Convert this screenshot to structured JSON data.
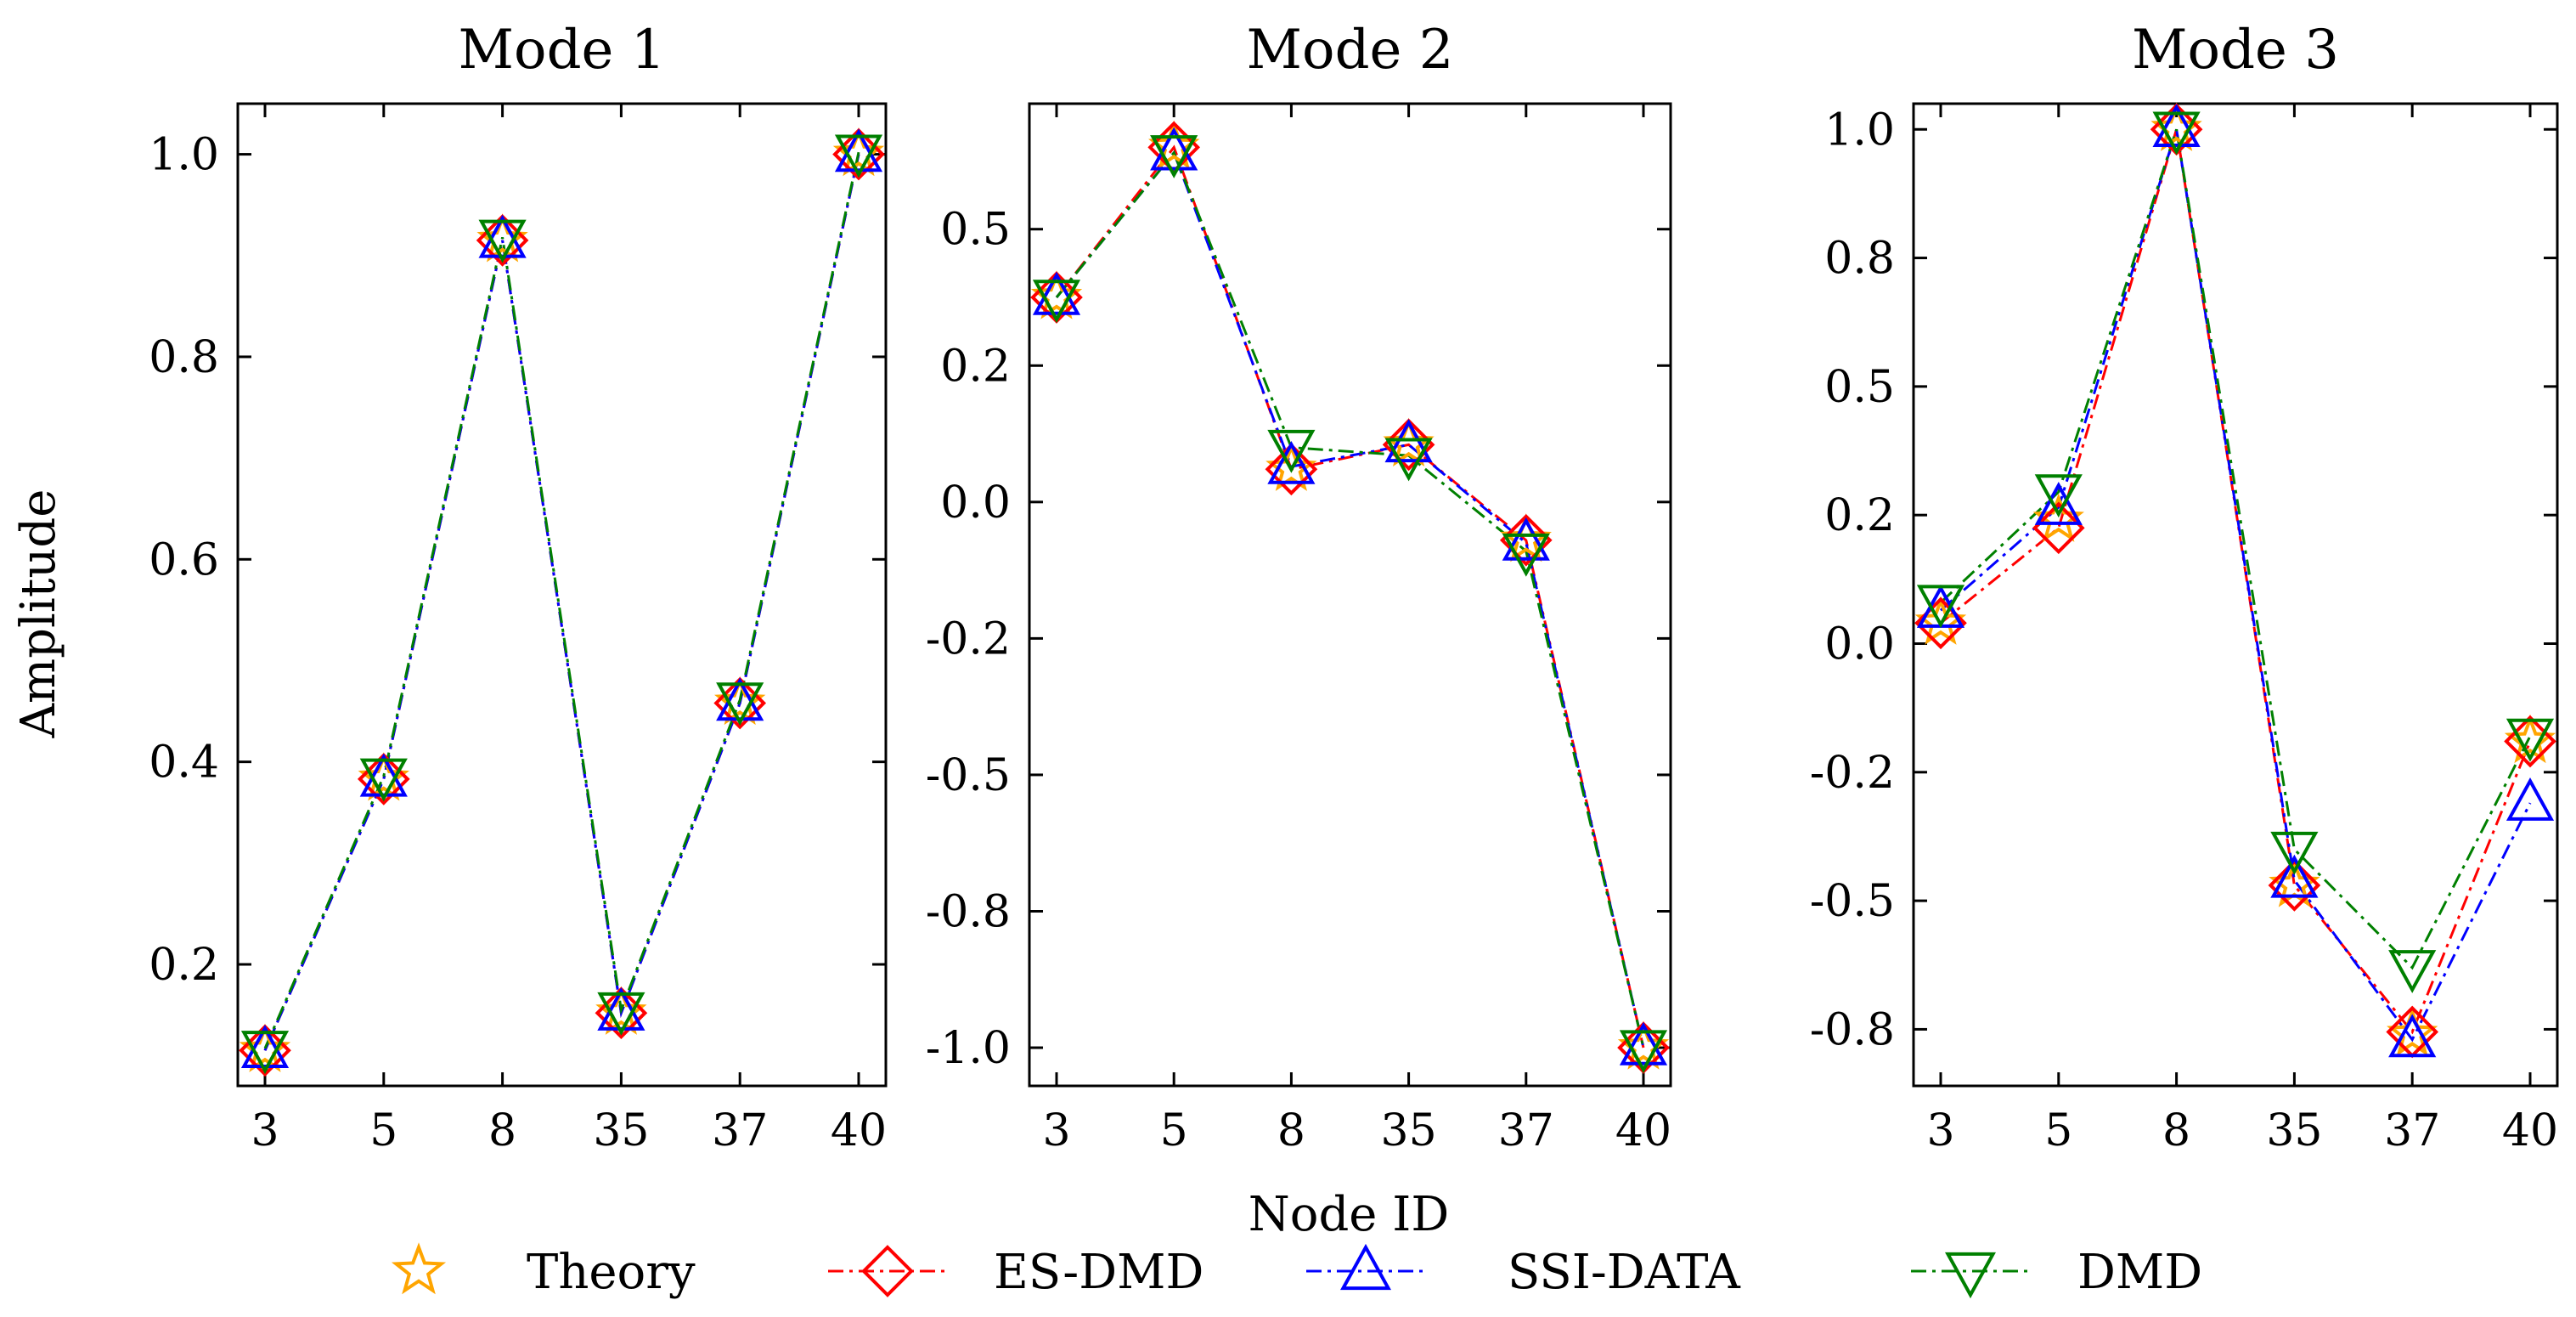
{
  "colors": {
    "theory": "#FFA500",
    "esdmd": "#FF0000",
    "ssidata": "#0000FF",
    "dmd": "#008000"
  },
  "chart_data": {
    "type": "line",
    "xlabel": "Node ID",
    "ylabel": "Amplitude",
    "categories": [
      "3",
      "5",
      "8",
      "35",
      "37",
      "40"
    ],
    "legend": [
      "Theory",
      "ES-DMD",
      "SSI-DATA",
      "DMD"
    ],
    "legend_position": "bottom",
    "panels": [
      {
        "title": "Mode 1",
        "ylim": [
          0.08,
          1.05
        ],
        "yticks": [
          0.2,
          0.4,
          0.6,
          0.8,
          1.0
        ],
        "ytick_labels": [
          "0.2",
          "0.4",
          "0.6",
          "0.8",
          "1.0"
        ],
        "series": [
          {
            "name": "Theory",
            "values": [
              0.115,
              0.383,
              0.915,
              0.152,
              0.458,
              1.0
            ]
          },
          {
            "name": "ES-DMD",
            "values": [
              0.115,
              0.383,
              0.915,
              0.152,
              0.458,
              1.0
            ]
          },
          {
            "name": "SSI-DATA",
            "values": [
              0.115,
              0.383,
              0.915,
              0.152,
              0.458,
              1.0
            ]
          },
          {
            "name": "DMD",
            "values": [
              0.117,
              0.386,
              0.918,
              0.155,
              0.461,
              1.002
            ]
          }
        ]
      },
      {
        "title": "Mode 2",
        "ylim": [
          -1.07,
          0.73
        ],
        "yticks": [
          -1.0,
          -0.75,
          -0.5,
          -0.25,
          0.0,
          0.25,
          0.5
        ],
        "ytick_labels": [
          "-1.0",
          "-0.8",
          "-0.5",
          "-0.2",
          "0.0",
          "0.2",
          "0.5"
        ],
        "series": [
          {
            "name": "Theory",
            "values": [
              0.375,
              0.65,
              0.06,
              0.105,
              -0.07,
              -1.0
            ]
          },
          {
            "name": "ES-DMD",
            "values": [
              0.375,
              0.65,
              0.06,
              0.105,
              -0.07,
              -1.0
            ]
          },
          {
            "name": "SSI-DATA",
            "values": [
              0.375,
              0.64,
              0.065,
              0.105,
              -0.075,
              -1.0
            ]
          },
          {
            "name": "DMD",
            "values": [
              0.375,
              0.64,
              0.1,
              0.085,
              -0.09,
              -1.0
            ]
          }
        ]
      },
      {
        "title": "Mode 3",
        "ylim": [
          -0.86,
          1.05
        ],
        "yticks": [
          -0.75,
          -0.5,
          -0.25,
          0.0,
          0.25,
          0.5,
          0.75,
          1.0
        ],
        "ytick_labels": [
          "-0.8",
          "-0.5",
          "-0.2",
          "0.0",
          "0.2",
          "0.5",
          "0.8",
          "1.0"
        ],
        "series": [
          {
            "name": "Theory",
            "values": [
              0.04,
              0.24,
              1.0,
              -0.47,
              -0.76,
              -0.19
            ]
          },
          {
            "name": "ES-DMD",
            "values": [
              0.04,
              0.225,
              1.0,
              -0.47,
              -0.755,
              -0.19
            ]
          },
          {
            "name": "SSI-DATA",
            "values": [
              0.065,
              0.265,
              1.0,
              -0.46,
              -0.77,
              -0.31
            ]
          },
          {
            "name": "DMD",
            "values": [
              0.08,
              0.295,
              1.0,
              -0.4,
              -0.63,
              -0.18
            ]
          }
        ]
      }
    ]
  }
}
